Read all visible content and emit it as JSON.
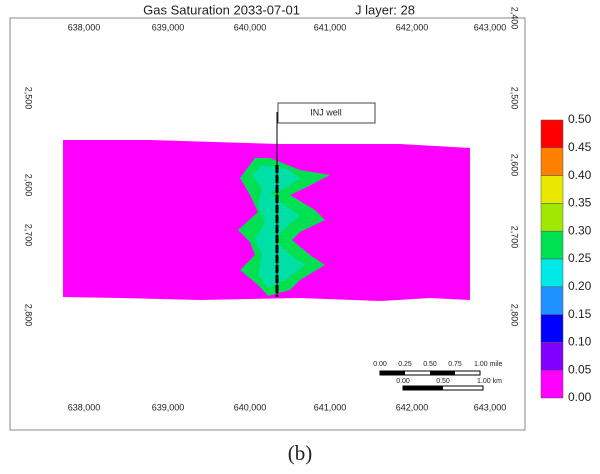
{
  "figure": {
    "title": "Gas Saturation 2033-07-01",
    "layer": "J layer: 28",
    "top_x_ticks": [
      "638,000",
      "639,000",
      "640,000",
      "641,000",
      "642,000",
      "643,000"
    ],
    "bottom_x_ticks": [
      "638,000",
      "639,000",
      "640,000",
      "641,000",
      "642,000",
      "643,000"
    ],
    "left_y_ticks": [
      "2,500",
      "2,600",
      "2,700",
      "2,800"
    ],
    "right_y_ticks": [
      "2,400",
      "2,500",
      "2,600",
      "2,700",
      "2,800"
    ],
    "annotation": "INJ well",
    "colorbar_labels": [
      "0.50",
      "0.45",
      "0.40",
      "0.35",
      "0.30",
      "0.25",
      "0.20",
      "0.15",
      "0.10",
      "0.05",
      "0.00"
    ],
    "scale_mile_labels": [
      "0.00",
      "0.25",
      "0.50",
      "0.75",
      "1.00 mile"
    ],
    "scale_km_labels": [
      "0.00",
      "0.50",
      "1.00 km"
    ],
    "caption": "(b)"
  }
}
